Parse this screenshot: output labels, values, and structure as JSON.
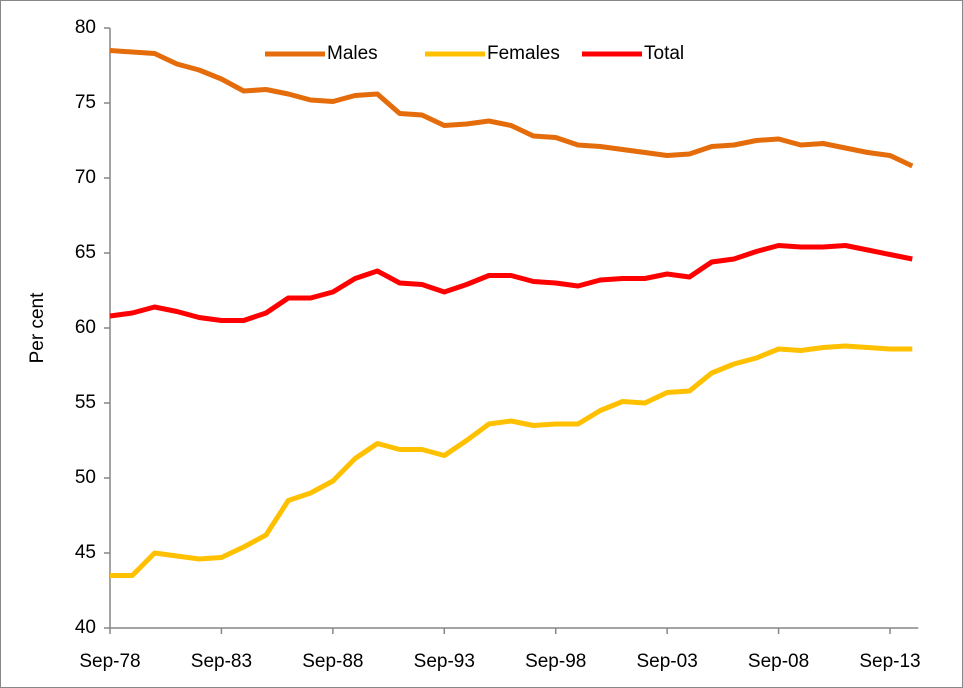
{
  "chart_data": {
    "type": "line",
    "y_label": "Per cent",
    "categories": [
      "Sep-78",
      null,
      null,
      null,
      null,
      "Sep-83",
      null,
      null,
      null,
      null,
      "Sep-88",
      null,
      null,
      null,
      null,
      "Sep-93",
      null,
      null,
      null,
      null,
      "Sep-98",
      null,
      null,
      null,
      null,
      "Sep-03",
      null,
      null,
      null,
      null,
      "Sep-08",
      null,
      null,
      null,
      null,
      "Sep-13",
      null
    ],
    "series": [
      {
        "name": "Males",
        "color": "#e46c0a",
        "values": [
          78.5,
          78.4,
          78.3,
          77.6,
          77.2,
          76.6,
          75.8,
          75.9,
          75.6,
          75.2,
          75.1,
          75.5,
          75.6,
          74.3,
          74.2,
          73.5,
          73.6,
          73.8,
          73.5,
          72.8,
          72.7,
          72.2,
          72.1,
          71.9,
          71.7,
          71.5,
          71.6,
          72.1,
          72.2,
          72.5,
          72.6,
          72.2,
          72.3,
          72.0,
          71.7,
          71.5,
          70.8
        ]
      },
      {
        "name": "Females",
        "color": "#ffc000",
        "values": [
          43.5,
          43.5,
          45.0,
          44.8,
          44.6,
          44.7,
          45.4,
          46.2,
          48.5,
          49.0,
          49.8,
          51.3,
          52.3,
          51.9,
          51.9,
          51.5,
          52.5,
          53.6,
          53.8,
          53.5,
          53.6,
          53.6,
          54.5,
          55.1,
          55.0,
          55.7,
          55.8,
          57.0,
          57.6,
          58.0,
          58.6,
          58.5,
          58.7,
          58.8,
          58.7,
          58.6,
          58.6
        ]
      },
      {
        "name": "Total",
        "color": "#ff0000",
        "values": [
          60.8,
          61.0,
          61.4,
          61.1,
          60.7,
          60.5,
          60.5,
          61.0,
          62.0,
          62.0,
          62.4,
          63.3,
          63.8,
          63.0,
          62.9,
          62.4,
          62.9,
          63.5,
          63.5,
          63.1,
          63.0,
          62.8,
          63.2,
          63.3,
          63.3,
          63.6,
          63.4,
          64.4,
          64.6,
          65.1,
          65.5,
          65.4,
          65.4,
          65.5,
          65.2,
          64.9,
          64.6
        ]
      }
    ],
    "ylim": [
      40,
      80
    ],
    "yticks": [
      40,
      45,
      50,
      55,
      60,
      65,
      70,
      75,
      80
    ],
    "grid": false,
    "legend": "top"
  }
}
